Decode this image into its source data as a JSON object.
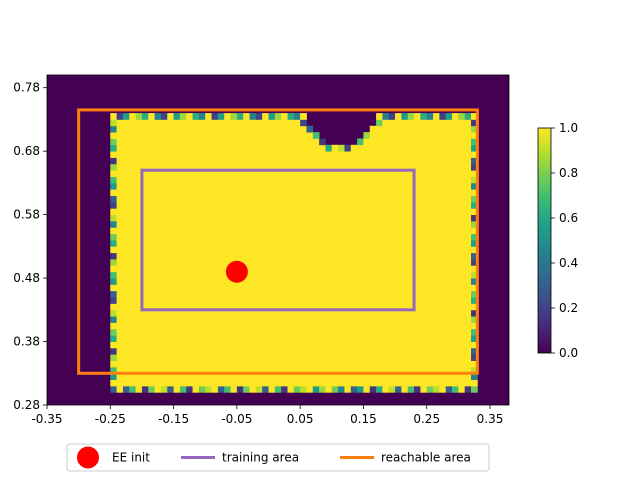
{
  "chart_data": {
    "type": "heatmap",
    "xlim": [
      -0.35,
      0.38
    ],
    "ylim": [
      0.28,
      0.8
    ],
    "x_ticks": [
      "-0.35",
      "-0.25",
      "-0.15",
      "-0.05",
      "0.05",
      "0.15",
      "0.25",
      "0.35"
    ],
    "x_tick_values": [
      -0.35,
      -0.25,
      -0.15,
      -0.05,
      0.05,
      0.15,
      0.25,
      0.35
    ],
    "y_ticks": [
      "0.28",
      "0.38",
      "0.48",
      "0.58",
      "0.68",
      "0.78"
    ],
    "y_tick_values": [
      0.28,
      0.38,
      0.48,
      0.58,
      0.68,
      0.78
    ],
    "colorbar": {
      "colormap": "viridis",
      "range": [
        0.0,
        1.0
      ],
      "ticks": [
        "0.0",
        "0.2",
        "0.4",
        "0.6",
        "0.8",
        "1.0"
      ],
      "tick_values": [
        0.0,
        0.2,
        0.4,
        0.6,
        0.8,
        1.0
      ]
    },
    "heatmap": {
      "grid_step": 0.01,
      "background_value": 0.0,
      "main_region_value": 1.0,
      "main_region": [
        -0.25,
        0.3,
        0.33,
        0.745
      ],
      "notch_center": [
        0.115,
        0.745
      ],
      "notch_radius": 0.055,
      "edge_values": [
        0.3,
        0.55,
        0.7,
        0.85,
        0.15,
        0.62,
        0.78,
        0.45,
        0.9,
        0.2
      ]
    },
    "ee_init": {
      "x": -0.05,
      "y": 0.49,
      "color": "#ff0000"
    },
    "training_area": {
      "x0": -0.2,
      "x1": 0.23,
      "y0": 0.43,
      "y1": 0.65,
      "color": "#9467bd"
    },
    "reachable_area": {
      "x0": -0.3,
      "x1": 0.33,
      "y0": 0.33,
      "y1": 0.745,
      "color": "#ff7f0e"
    },
    "legend": {
      "placement": "bottom-center",
      "entries": [
        {
          "label": "EE init",
          "marker": "circle",
          "color": "#ff0000"
        },
        {
          "label": "training area",
          "marker": "line",
          "color": "#9467bd"
        },
        {
          "label": "reachable area",
          "marker": "line",
          "color": "#ff7f0e"
        }
      ]
    }
  }
}
